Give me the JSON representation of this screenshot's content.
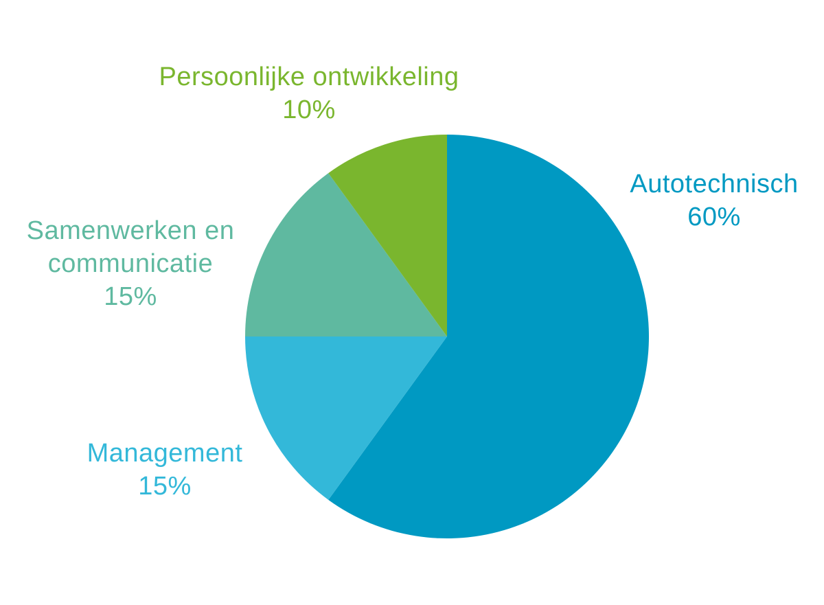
{
  "chart_data": {
    "type": "pie",
    "title": "",
    "categories": [
      "Autotechnisch",
      "Management",
      "Samenwerken en communicatie",
      "Persoonlijke ontwikkeling"
    ],
    "values": [
      60,
      15,
      15,
      10
    ],
    "unit": "%",
    "colors": [
      "#0099C2",
      "#33B8D9",
      "#5FB9A0",
      "#7AB62E"
    ],
    "start_angle": "12 o'clock",
    "direction": "clockwise",
    "legend": "none (direct labels)"
  },
  "labels": [
    {
      "lines": [
        "Autotechnisch"
      ],
      "pct": "60%",
      "color": "#0099C2"
    },
    {
      "lines": [
        "Management"
      ],
      "pct": "15%",
      "color": "#33B8D9"
    },
    {
      "lines": [
        "Samenwerken en",
        "communicatie"
      ],
      "pct": "15%",
      "color": "#5FB9A0"
    },
    {
      "lines": [
        "Persoonlijke ontwikkeling"
      ],
      "pct": "10%",
      "color": "#7AB62E"
    }
  ]
}
